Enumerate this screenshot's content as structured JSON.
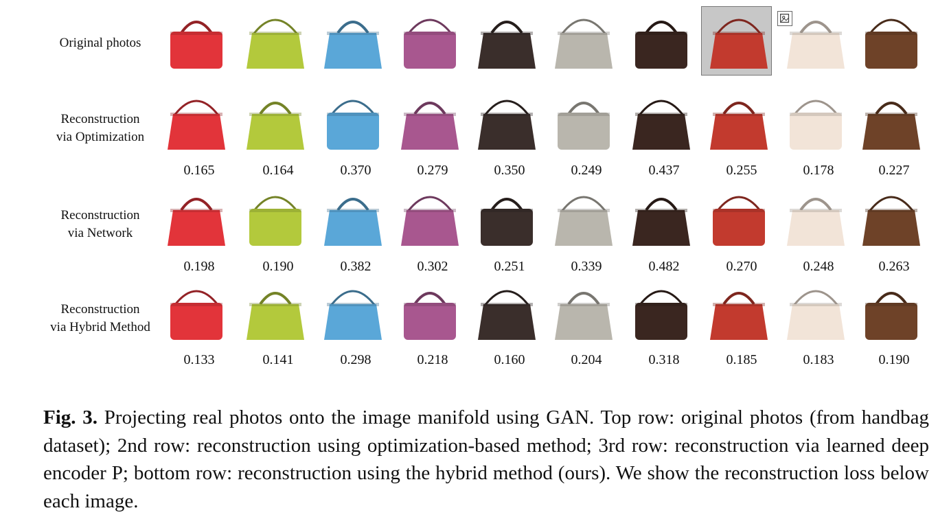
{
  "rows": [
    {
      "label_lines": [
        "Original photos"
      ],
      "losses": []
    },
    {
      "label_lines": [
        "Reconstruction",
        "via Optimization"
      ],
      "losses": [
        "0.165",
        "0.164",
        "0.370",
        "0.279",
        "0.350",
        "0.249",
        "0.437",
        "0.255",
        "0.178",
        "0.227"
      ]
    },
    {
      "label_lines": [
        "Reconstruction",
        "via Network"
      ],
      "losses": [
        "0.198",
        "0.190",
        "0.382",
        "0.302",
        "0.251",
        "0.339",
        "0.482",
        "0.270",
        "0.248",
        "0.263"
      ]
    },
    {
      "label_lines": [
        "Reconstruction",
        "via Hybrid Method"
      ],
      "losses": [
        "0.133",
        "0.141",
        "0.298",
        "0.218",
        "0.160",
        "0.204",
        "0.318",
        "0.185",
        "0.183",
        "0.190"
      ]
    }
  ],
  "bag_colors": [
    "#e2343a",
    "#b3c93c",
    "#5aa7d8",
    "#a8578f",
    "#3a2e2b",
    "#b9b6ad",
    "#3a2620",
    "#c23a2e",
    "#f2e4d8",
    "#6e4228"
  ],
  "image_icon": "image-placeholder-icon",
  "caption": {
    "label": "Fig. 3.",
    "text": " Projecting real photos onto the image manifold using GAN. Top row: original photos (from handbag dataset); 2nd row: reconstruction using optimization-based method; 3rd row: reconstruction via learned deep encoder P; bottom row: reconstruction using the hybrid method (ours). We show the reconstruction loss below each image."
  }
}
